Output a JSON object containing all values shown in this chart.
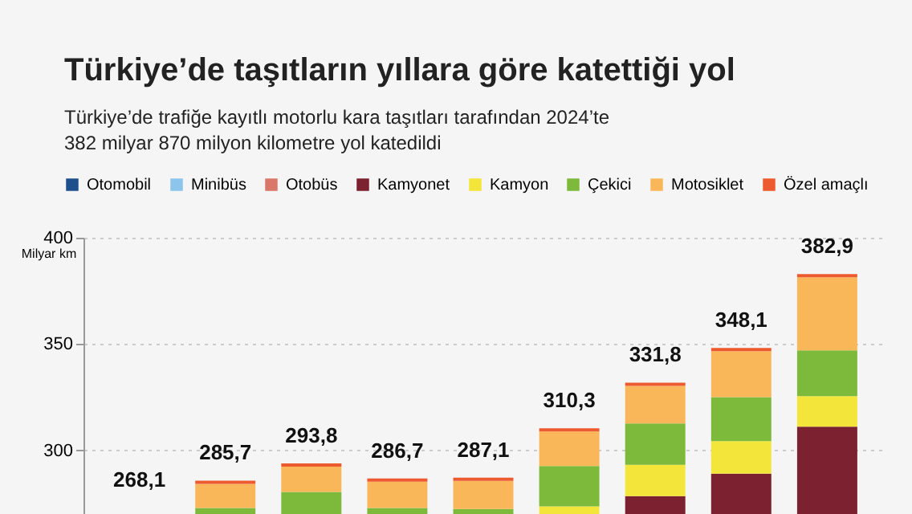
{
  "chart_data": {
    "type": "bar",
    "title": "Türkiye’de taşıtların yıllara göre katettiği yol",
    "subtitle": [
      "Türkiye’de trafiğe kayıtlı motorlu kara taşıtları tarafından 2024’te",
      "382 milyar 870 milyon kilometre yol katedildi"
    ],
    "ylabel": "Milyar km",
    "categories": [
      null,
      null,
      null,
      null,
      null,
      null,
      null,
      null,
      null
    ],
    "series": [
      {
        "name": "Otomobil",
        "color": "#1f4e8c",
        "base": [
          null,
          null,
          null,
          null,
          null,
          null,
          null,
          null,
          null
        ],
        "values": [
          null,
          null,
          null,
          null,
          null,
          null,
          null,
          null,
          null
        ]
      },
      {
        "name": "Minibüs",
        "color": "#8cc4ec",
        "base": [
          null,
          null,
          null,
          null,
          null,
          null,
          null,
          null,
          null
        ],
        "values": [
          null,
          null,
          null,
          null,
          null,
          null,
          null,
          null,
          null
        ]
      },
      {
        "name": "Otobüs",
        "color": "#d9776a",
        "base": [
          null,
          null,
          null,
          null,
          null,
          null,
          null,
          null,
          null
        ],
        "values": [
          null,
          null,
          null,
          null,
          null,
          null,
          null,
          null,
          null
        ]
      },
      {
        "name": "Kamyonet",
        "color": "#7b2130",
        "base": [
          null,
          null,
          null,
          null,
          null,
          null,
          270,
          270,
          270
        ],
        "values": [
          null,
          null,
          null,
          null,
          null,
          null,
          8.4,
          19.0,
          41.1
        ]
      },
      {
        "name": "Kamyon",
        "color": "#f3e53a",
        "base": [
          null,
          null,
          null,
          null,
          null,
          270,
          278.4,
          289.0,
          311.1
        ],
        "values": [
          null,
          null,
          null,
          null,
          null,
          3.6,
          14.7,
          15.3,
          14.4
        ]
      },
      {
        "name": "Çekici",
        "color": "#7dba3c",
        "base": [
          null,
          270,
          270,
          270,
          270,
          273.6,
          293.1,
          304.3,
          325.5
        ],
        "values": [
          null,
          2.8,
          10.4,
          2.8,
          2.4,
          19.0,
          19.5,
          20.7,
          21.5
        ]
      },
      {
        "name": "Motosiklet",
        "color": "#f9b75a",
        "base": [
          null,
          272.8,
          280.4,
          272.8,
          272.4,
          292.6,
          312.6,
          325.0,
          347.0
        ],
        "values": [
          null,
          11.4,
          11.9,
          12.4,
          13.2,
          16.2,
          17.7,
          21.6,
          34.4
        ]
      },
      {
        "name": "Özel amaçlı",
        "color": "#ee5a2f",
        "base": [
          null,
          284.2,
          292.3,
          285.2,
          285.6,
          308.8,
          330.3,
          346.6,
          381.4
        ],
        "values": [
          null,
          1.5,
          1.5,
          1.5,
          1.5,
          1.5,
          1.5,
          1.5,
          1.5
        ]
      }
    ],
    "annotations": [
      "268,1",
      {
        "text": "285,7",
        "y": 285.7
      },
      {
        "text": "293,8",
        "y": 293.8
      },
      {
        "text": "286,7",
        "y": 286.7
      },
      {
        "text": "287,1",
        "y": 287.1
      },
      {
        "text": "310,3",
        "y": 310.3
      },
      {
        "text": "331,8",
        "y": 331.8
      },
      {
        "text": "348,1",
        "y": 348.1
      },
      {
        "text": "382,9",
        "y": 382.9
      }
    ],
    "ylim": [
      270,
      400
    ],
    "yticks": [
      300,
      350,
      400
    ],
    "grid": "y",
    "legend": "top",
    "tick_labels": "y"
  }
}
